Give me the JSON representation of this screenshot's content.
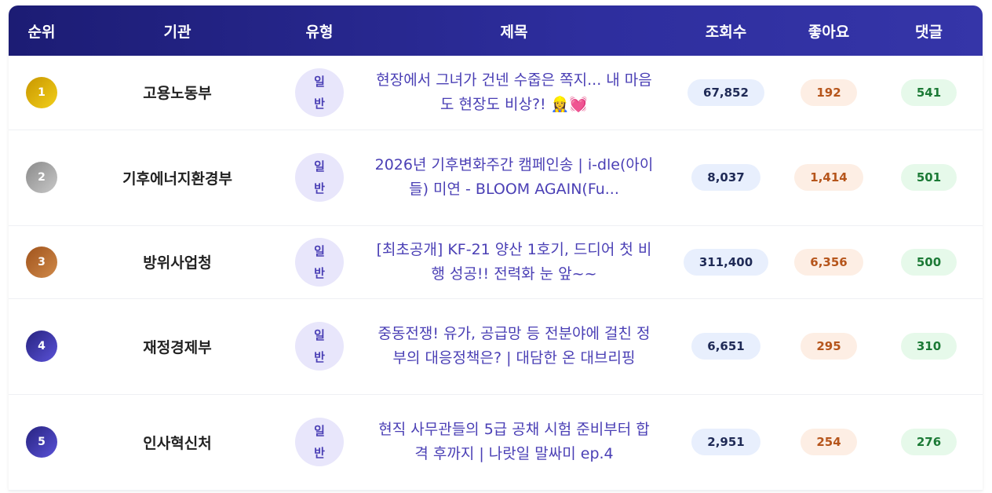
{
  "headers": {
    "rank": "순위",
    "agency": "기관",
    "type": "유형",
    "title": "제목",
    "views": "조회수",
    "likes": "좋아요",
    "comments": "댓글"
  },
  "colors": {
    "header_start": "#1c1c74",
    "header_end": "#3535a8",
    "title_text": "#4a3fb5",
    "gold": "#d4a300",
    "silver": "#9a9a9a",
    "bronze": "#a85a22",
    "other_rank": "#3a36b0"
  },
  "rows": [
    {
      "rank": "1",
      "agency": "고용노동부",
      "type_line1": "일",
      "type_line2": "반",
      "title": "현장에서 그녀가 건넨 수줍은 쪽지... 내 마음도 현장도 비상?! 👷‍♀️💓",
      "views": "67,852",
      "likes": "192",
      "comments": "541",
      "badge": "gold"
    },
    {
      "rank": "2",
      "agency": "기후에너지환경부",
      "type_line1": "일",
      "type_line2": "반",
      "title": "2026년 기후변화주간 캠페인송 | i-dle(아이들) 미연 - BLOOM AGAIN(Fu...",
      "views": "8,037",
      "likes": "1,414",
      "comments": "501",
      "badge": "silver"
    },
    {
      "rank": "3",
      "agency": "방위사업청",
      "type_line1": "일",
      "type_line2": "반",
      "title": "[최초공개] KF-21 양산 1호기, 드디어 첫 비행 성공!! 전력화 눈 앞~~",
      "views": "311,400",
      "likes": "6,356",
      "comments": "500",
      "badge": "bronze"
    },
    {
      "rank": "4",
      "agency": "재정경제부",
      "type_line1": "일",
      "type_line2": "반",
      "title": "중동전쟁! 유가, 공급망 등 전분야에 걸친 정부의 대응정책은? | 대담한 온 대브리핑",
      "views": "6,651",
      "likes": "295",
      "comments": "310",
      "badge": "other"
    },
    {
      "rank": "5",
      "agency": "인사혁신처",
      "type_line1": "일",
      "type_line2": "반",
      "title": "현직 사무관들의 5급 공채 시험 준비부터 합격 후까지 | 나랏일 말싸미 ep.4",
      "views": "2,951",
      "likes": "254",
      "comments": "276",
      "badge": "other"
    }
  ]
}
